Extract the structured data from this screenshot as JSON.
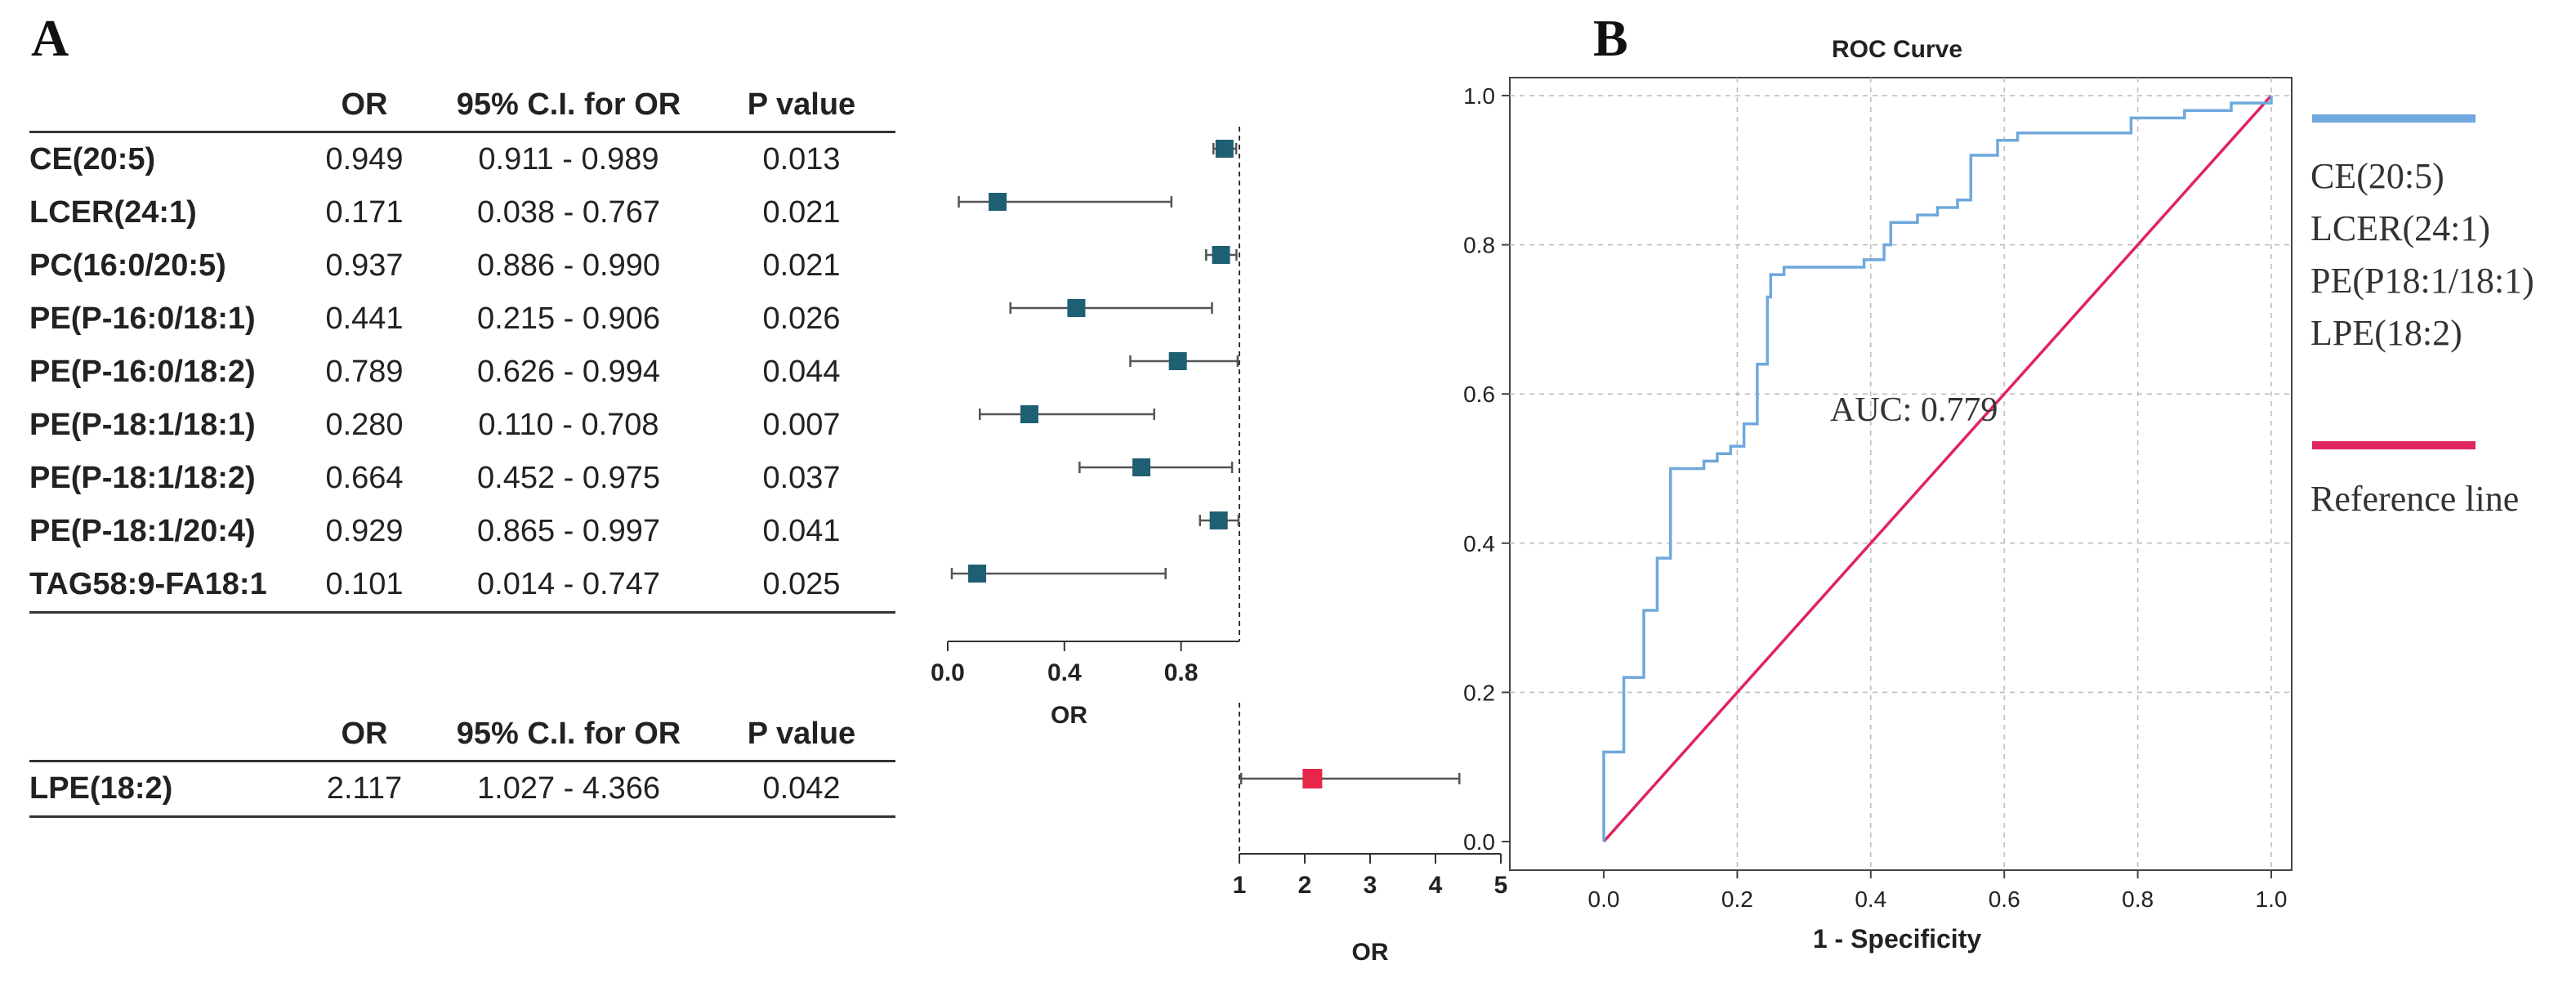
{
  "panel_a": {
    "label": "A"
  },
  "panel_b": {
    "label": "B"
  },
  "table1": {
    "headers": [
      "",
      "OR",
      "95% C.I. for OR",
      "P value"
    ],
    "rows": [
      [
        "CE(20:5)",
        "0.949",
        "0.911 - 0.989",
        "0.013"
      ],
      [
        "LCER(24:1)",
        "0.171",
        "0.038 - 0.767",
        "0.021"
      ],
      [
        "PC(16:0/20:5)",
        "0.937",
        "0.886 - 0.990",
        "0.021"
      ],
      [
        "PE(P-16:0/18:1)",
        "0.441",
        "0.215 - 0.906",
        "0.026"
      ],
      [
        "PE(P-16:0/18:2)",
        "0.789",
        "0.626 - 0.994",
        "0.044"
      ],
      [
        "PE(P-18:1/18:1)",
        "0.280",
        "0.110 - 0.708",
        "0.007"
      ],
      [
        "PE(P-18:1/18:2)",
        "0.664",
        "0.452 - 0.975",
        "0.037"
      ],
      [
        "PE(P-18:1/20:4)",
        "0.929",
        "0.865 - 0.997",
        "0.041"
      ],
      [
        "TAG58:9-FA18:1",
        "0.101",
        "0.014 - 0.747",
        "0.025"
      ]
    ]
  },
  "table2": {
    "headers": [
      "",
      "OR",
      "95% C.I. for OR",
      "P value"
    ],
    "rows": [
      [
        "LPE(18:2)",
        "2.117",
        "1.027 - 4.366",
        "0.042"
      ]
    ]
  },
  "chart_data": [
    {
      "type": "forest",
      "xlabel": "OR",
      "xlim": [
        0,
        1
      ],
      "xticks": [
        "0.0",
        "0.4",
        "0.8"
      ],
      "xtick_values": [
        0,
        0.4,
        0.8
      ],
      "reference": 1,
      "marker_color": "#1f5f73",
      "points": [
        {
          "label": "CE(20:5)",
          "or": 0.949,
          "lo": 0.911,
          "hi": 0.989
        },
        {
          "label": "LCER(24:1)",
          "or": 0.171,
          "lo": 0.038,
          "hi": 0.767
        },
        {
          "label": "PC(16:0/20:5)",
          "or": 0.937,
          "lo": 0.886,
          "hi": 0.99
        },
        {
          "label": "PE(P-16:0/18:1)",
          "or": 0.441,
          "lo": 0.215,
          "hi": 0.906
        },
        {
          "label": "PE(P-16:0/18:2)",
          "or": 0.789,
          "lo": 0.626,
          "hi": 0.994
        },
        {
          "label": "PE(P-18:1/18:1)",
          "or": 0.28,
          "lo": 0.11,
          "hi": 0.708
        },
        {
          "label": "PE(P-18:1/18:2)",
          "or": 0.664,
          "lo": 0.452,
          "hi": 0.975
        },
        {
          "label": "PE(P-18:1/20:4)",
          "or": 0.929,
          "lo": 0.865,
          "hi": 0.997
        },
        {
          "label": "TAG58:9-FA18:1",
          "or": 0.101,
          "lo": 0.014,
          "hi": 0.747
        }
      ]
    },
    {
      "type": "forest",
      "xlabel": "OR",
      "xlim": [
        1,
        5
      ],
      "xticks": [
        "1",
        "2",
        "3",
        "4",
        "5"
      ],
      "xtick_values": [
        1,
        2,
        3,
        4,
        5
      ],
      "reference": 1,
      "marker_color": "#e8264a",
      "points": [
        {
          "label": "LPE(18:2)",
          "or": 2.117,
          "lo": 1.027,
          "hi": 4.366
        }
      ]
    },
    {
      "type": "line",
      "title": "ROC Curve",
      "xlabel": "1 - Specificity",
      "ylabel": "",
      "xlim": [
        0,
        1
      ],
      "ylim": [
        0,
        1
      ],
      "xticks": [
        "0.0",
        "0.2",
        "0.4",
        "0.6",
        "0.8",
        "1.0"
      ],
      "yticks": [
        "0.0",
        "0.2",
        "0.4",
        "0.6",
        "0.8",
        "1.0"
      ],
      "grid": true,
      "annotation": "AUC: 0.779",
      "series": [
        {
          "name": "CE(20:5)\nLCER(24:1)\nPE(P18:1/18:1)\nLPE(18:2)",
          "color": "#6fa8dc",
          "points": [
            [
              0,
              0
            ],
            [
              0,
              0.12
            ],
            [
              0.03,
              0.12
            ],
            [
              0.03,
              0.22
            ],
            [
              0.06,
              0.22
            ],
            [
              0.06,
              0.31
            ],
            [
              0.08,
              0.31
            ],
            [
              0.08,
              0.38
            ],
            [
              0.1,
              0.38
            ],
            [
              0.1,
              0.5
            ],
            [
              0.15,
              0.5
            ],
            [
              0.15,
              0.51
            ],
            [
              0.17,
              0.51
            ],
            [
              0.17,
              0.52
            ],
            [
              0.19,
              0.52
            ],
            [
              0.19,
              0.53
            ],
            [
              0.21,
              0.53
            ],
            [
              0.21,
              0.56
            ],
            [
              0.23,
              0.56
            ],
            [
              0.23,
              0.64
            ],
            [
              0.245,
              0.64
            ],
            [
              0.245,
              0.73
            ],
            [
              0.25,
              0.73
            ],
            [
              0.25,
              0.76
            ],
            [
              0.27,
              0.76
            ],
            [
              0.27,
              0.77
            ],
            [
              0.39,
              0.77
            ],
            [
              0.39,
              0.78
            ],
            [
              0.42,
              0.78
            ],
            [
              0.42,
              0.8
            ],
            [
              0.43,
              0.8
            ],
            [
              0.43,
              0.83
            ],
            [
              0.47,
              0.83
            ],
            [
              0.47,
              0.84
            ],
            [
              0.5,
              0.84
            ],
            [
              0.5,
              0.85
            ],
            [
              0.53,
              0.85
            ],
            [
              0.53,
              0.86
            ],
            [
              0.55,
              0.86
            ],
            [
              0.55,
              0.92
            ],
            [
              0.59,
              0.92
            ],
            [
              0.59,
              0.94
            ],
            [
              0.62,
              0.94
            ],
            [
              0.62,
              0.95
            ],
            [
              0.79,
              0.95
            ],
            [
              0.79,
              0.97
            ],
            [
              0.87,
              0.97
            ],
            [
              0.87,
              0.98
            ],
            [
              0.94,
              0.98
            ],
            [
              0.94,
              0.99
            ],
            [
              1,
              0.99
            ],
            [
              1,
              1
            ]
          ]
        },
        {
          "name": "Reference line",
          "color": "#e0245e",
          "points": [
            [
              0,
              0
            ],
            [
              1,
              1
            ]
          ]
        }
      ]
    }
  ]
}
